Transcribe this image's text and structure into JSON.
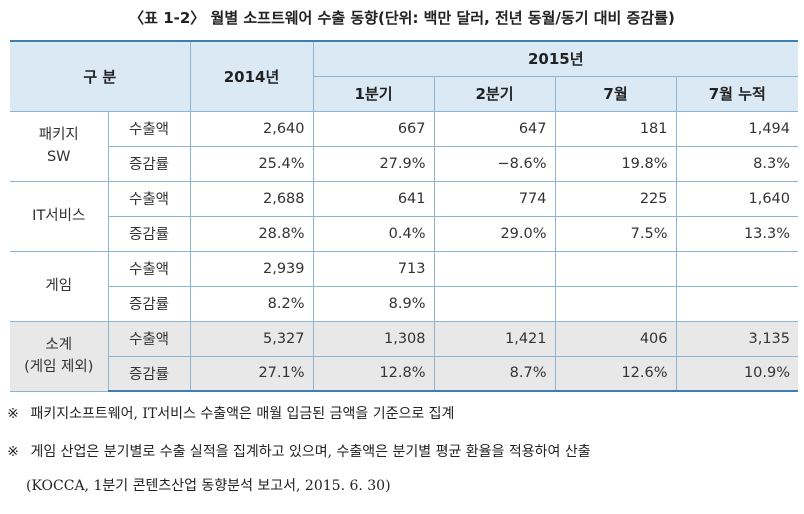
{
  "title": "〈표 1-2〉 월별 소프트웨어 수출 동향(단위: 백만 달러, 전년 동월/동기 대비 증감률)",
  "header": {
    "category": "구 분",
    "year_2014": "2014년",
    "year_2015": "2015년",
    "q1": "1분기",
    "q2": "2분기",
    "july": "7월",
    "july_cum": "7월 누적"
  },
  "groups": [
    {
      "name_line1": "패키지",
      "name_line2": "SW",
      "rows": [
        {
          "metric": "수출액",
          "v2014": "2,640",
          "q1": "667",
          "q2": "647",
          "july": "181",
          "july_cum": "1,494"
        },
        {
          "metric": "증감률",
          "v2014": "25.4%",
          "q1": "27.9%",
          "q2": "−8.6%",
          "july": "19.8%",
          "july_cum": "8.3%"
        }
      ]
    },
    {
      "name_line1": "IT서비스",
      "name_line2": "",
      "rows": [
        {
          "metric": "수출액",
          "v2014": "2,688",
          "q1": "641",
          "q2": "774",
          "july": "225",
          "july_cum": "1,640"
        },
        {
          "metric": "증감률",
          "v2014": "28.8%",
          "q1": "0.4%",
          "q2": "29.0%",
          "july": "7.5%",
          "july_cum": "13.3%"
        }
      ]
    },
    {
      "name_line1": "게임",
      "name_line2": "",
      "rows": [
        {
          "metric": "수출액",
          "v2014": "2,939",
          "q1": "713",
          "q2": "",
          "july": "",
          "july_cum": ""
        },
        {
          "metric": "증감률",
          "v2014": "8.2%",
          "q1": "8.9%",
          "q2": "",
          "july": "",
          "july_cum": ""
        }
      ]
    },
    {
      "name_line1": "소계",
      "name_line2": "(게임 제외)",
      "rows": [
        {
          "metric": "수출액",
          "v2014": "5,327",
          "q1": "1,308",
          "q2": "1,421",
          "july": "406",
          "july_cum": "3,135"
        },
        {
          "metric": "증감률",
          "v2014": "27.1%",
          "q1": "12.8%",
          "q2": "8.7%",
          "july": "12.6%",
          "july_cum": "10.9%"
        }
      ]
    }
  ],
  "notes": {
    "mark": "※",
    "note1": "패키지소프트웨어, IT서비스 수출액은 매월 입금된 금액을 기준으로 집계",
    "note2": "게임 산업은 분기별로 수출 실적을 집계하고 있으며, 수출액은 분기별 평균 환율을 적용하여 산출",
    "source": "(KOCCA, 1분기 콘텐츠산업 동향분석 보고서, 2015. 6. 30)"
  }
}
